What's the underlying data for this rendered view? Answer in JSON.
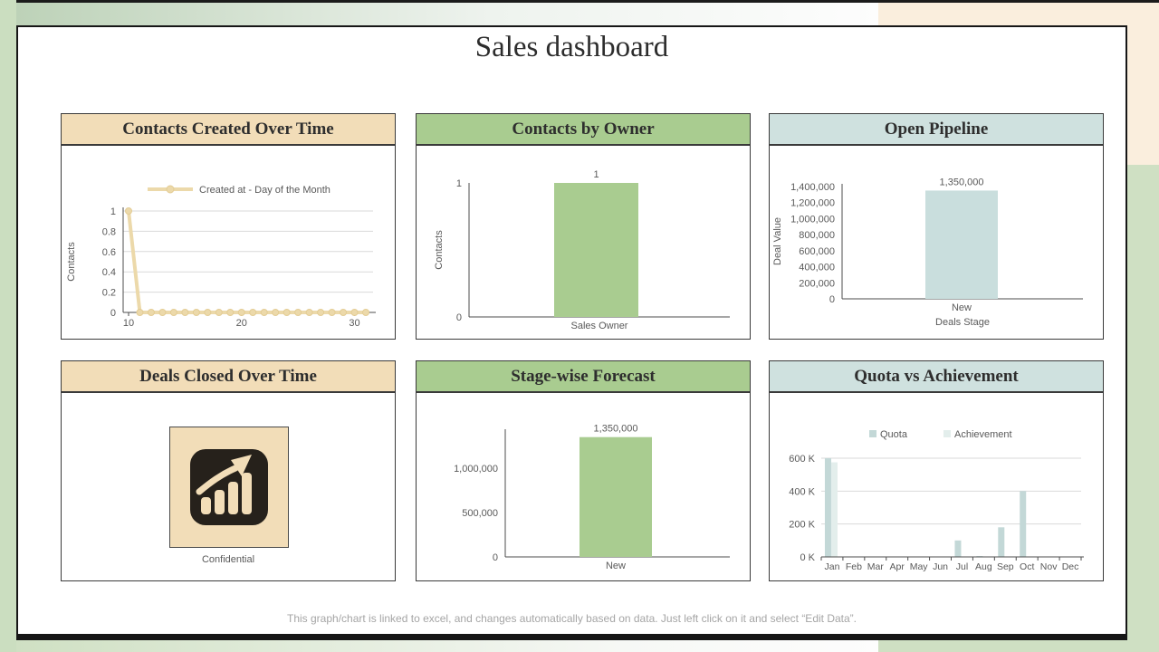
{
  "page": {
    "title": "Sales dashboard",
    "footnote": "This graph/chart is linked to excel, and changes automatically based on data. Just left click on it and select “Edit Data”."
  },
  "colors": {
    "axis": "#4d4d4d",
    "label": "#595959",
    "grid": "#d9d9d9",
    "card_border": "#161616",
    "bg_green": "#cbdec0",
    "bg_peach": "#faeedd"
  },
  "panels": [
    {
      "title": "Contacts Created Over Time",
      "header_color": "#f2ddb8"
    },
    {
      "title": "Contacts by Owner",
      "header_color": "#a9cc90"
    },
    {
      "title": "Open Pipeline",
      "header_color": "#cfe1df"
    },
    {
      "title": "Deals Closed Over Time",
      "header_color": "#f2ddb8",
      "caption": "Confidential",
      "icon": "growth-bar-chart-icon",
      "icon_bg": "#f2ddb8",
      "icon_dark": "#26211b",
      "icon_light": "#f2ddb8"
    },
    {
      "title": "Stage-wise Forecast",
      "header_color": "#a9cc90"
    },
    {
      "title": "Quota vs Achievement",
      "header_color": "#cfe1df"
    }
  ],
  "chart_data": [
    {
      "id": "contacts-created-over-time",
      "type": "line",
      "title": "Contacts Created Over Time",
      "legend": "Created at - Day of the Month",
      "legend_position": "top",
      "ylabel": "Contacts",
      "xlabel": "",
      "x": [
        10,
        11,
        12,
        13,
        14,
        15,
        16,
        17,
        18,
        19,
        20,
        21,
        22,
        23,
        24,
        25,
        26,
        27,
        28,
        29,
        30,
        31
      ],
      "values": [
        1,
        0,
        0,
        0,
        0,
        0,
        0,
        0,
        0,
        0,
        0,
        0,
        0,
        0,
        0,
        0,
        0,
        0,
        0,
        0,
        0,
        0
      ],
      "ylim": [
        0,
        1
      ],
      "yticks": [
        0,
        0.2,
        0.4,
        0.6,
        0.8,
        1
      ],
      "ytick_labels": [
        "0",
        "0.2",
        "0.4",
        "0.6",
        "0.8",
        "1"
      ],
      "xticks": [
        10,
        20,
        30
      ],
      "grid": true,
      "line_color": "#ecd9aa",
      "marker_color": "#e3cc94"
    },
    {
      "id": "contacts-by-owner",
      "type": "bar",
      "title": "Contacts by Owner",
      "xlabel": "Sales Owner",
      "ylabel": "Contacts",
      "categories": [
        ""
      ],
      "values": [
        1
      ],
      "data_labels": [
        "1"
      ],
      "ylim": [
        0,
        1
      ],
      "yticks": [
        0,
        1
      ],
      "ytick_labels": [
        "0",
        "1"
      ],
      "grid": false,
      "bar_color": "#a9cc90"
    },
    {
      "id": "open-pipeline",
      "type": "bar",
      "title": "Open Pipeline",
      "xlabel": "Deals Stage",
      "ylabel": "Deal Value",
      "categories": [
        "New"
      ],
      "values": [
        1350000
      ],
      "data_labels": [
        "1,350,000"
      ],
      "ylim": [
        0,
        1400000
      ],
      "yticks": [
        0,
        200000,
        400000,
        600000,
        800000,
        1000000,
        1200000,
        1400000
      ],
      "ytick_labels": [
        "0",
        "200,000",
        "400,000",
        "600,000",
        "800,000",
        "1,000,000",
        "1,200,000",
        "1,400,000"
      ],
      "grid": false,
      "bar_color": "#c9dedd"
    },
    {
      "id": "stage-wise-forecast",
      "type": "bar",
      "title": "Stage-wise Forecast",
      "xlabel": "",
      "ylabel": "",
      "categories": [
        "New"
      ],
      "values": [
        1350000
      ],
      "data_labels": [
        "1,350,000"
      ],
      "ylim": [
        0,
        1450000
      ],
      "yticks": [
        0,
        500000,
        1000000
      ],
      "ytick_labels": [
        "0",
        "500,000",
        "1,000,000"
      ],
      "grid": false,
      "bar_color": "#a9cc90"
    },
    {
      "id": "quota-vs-achievement",
      "type": "bar",
      "title": "Quota vs Achievement",
      "legend_position": "top",
      "categories": [
        "Jan",
        "Feb",
        "Mar",
        "Apr",
        "May",
        "Jun",
        "Jul",
        "Aug",
        "Sep",
        "Oct",
        "Nov",
        "Dec"
      ],
      "series": [
        {
          "name": "Quota",
          "color": "#c3d8d7",
          "values": [
            600000,
            0,
            0,
            0,
            0,
            0,
            100000,
            5000,
            180000,
            400000,
            0,
            0
          ]
        },
        {
          "name": "Achievement",
          "color": "#e3eeec",
          "values": [
            575000,
            0,
            0,
            0,
            0,
            0,
            0,
            0,
            0,
            0,
            0,
            0
          ]
        }
      ],
      "ylim": [
        0,
        600000
      ],
      "yticks": [
        0,
        200000,
        400000,
        600000
      ],
      "ytick_labels": [
        "0 K",
        "200 K",
        "400 K",
        "600 K"
      ],
      "grid": true
    }
  ]
}
